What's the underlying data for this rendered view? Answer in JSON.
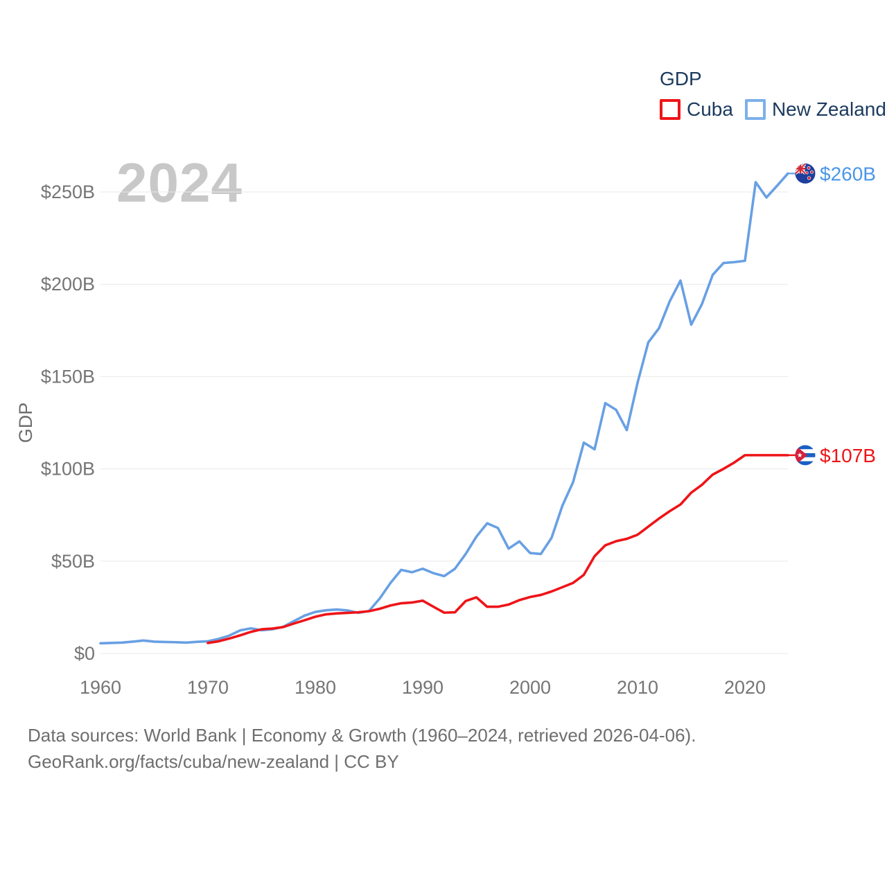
{
  "legend": {
    "title": "GDP",
    "items": [
      {
        "key": "cuba",
        "label": "Cuba",
        "color": "#ee1418"
      },
      {
        "key": "nz",
        "label": "New Zealand",
        "color": "#7db0ea"
      }
    ]
  },
  "watermark": "2024",
  "chart_data": {
    "type": "line",
    "title": "GDP",
    "ylabel": "GDP",
    "xlabel": "",
    "units": "USD billions",
    "x_range": [
      1960,
      2024
    ],
    "y_range": [
      0,
      250
    ],
    "grid": "horizontal",
    "legend_position": "top-right",
    "yticks": [
      {
        "value": 0,
        "label": "$0"
      },
      {
        "value": 50,
        "label": "$50B"
      },
      {
        "value": 100,
        "label": "$100B"
      },
      {
        "value": 150,
        "label": "$150B"
      },
      {
        "value": 200,
        "label": "$200B"
      },
      {
        "value": 250,
        "label": "$250B"
      }
    ],
    "xticks": [
      1960,
      1970,
      1980,
      1990,
      2000,
      2010,
      2020
    ],
    "series": [
      {
        "key": "cuba",
        "name": "Cuba",
        "color": "#ee1418",
        "label_color": "#ee1418",
        "end_label": "$107B",
        "flag": "cuba",
        "start_year": 1970,
        "values": [
          5.7,
          6.6,
          8.1,
          9.8,
          11.7,
          13.1,
          13.5,
          14.3,
          16.2,
          18.0,
          19.9,
          21.2,
          21.7,
          22.0,
          22.3,
          22.9,
          24.2,
          26.0,
          27.2,
          27.6,
          28.6,
          25.3,
          22.1,
          22.3,
          28.4,
          30.4,
          25.3,
          25.3,
          26.5,
          28.9,
          30.6,
          31.7,
          33.6,
          35.9,
          38.2,
          42.6,
          52.7,
          58.6,
          60.8,
          62.1,
          64.3,
          68.7,
          73.1,
          77.1,
          80.7,
          87.1,
          91.4,
          96.9,
          100.0,
          103.4,
          107.4,
          107.4,
          107.4,
          107.4,
          107.4
        ]
      },
      {
        "key": "nz",
        "name": "New Zealand",
        "color": "#68a0e3",
        "label_color": "#4b96e8",
        "end_label": "$260B",
        "flag": "new-zealand",
        "start_year": 1960,
        "values": [
          5.5,
          5.7,
          5.9,
          6.4,
          7.0,
          6.4,
          6.2,
          6.1,
          5.9,
          6.3,
          6.6,
          7.9,
          9.7,
          12.5,
          13.6,
          12.6,
          13.1,
          14.4,
          17.5,
          20.5,
          22.5,
          23.4,
          23.8,
          23.3,
          22.0,
          23.0,
          29.8,
          38.2,
          45.3,
          44.0,
          45.9,
          43.5,
          41.9,
          45.9,
          53.9,
          63.3,
          70.5,
          68.0,
          56.8,
          60.7,
          54.4,
          53.9,
          62.7,
          80.0,
          92.8,
          114.2,
          110.6,
          135.6,
          132.0,
          121.0,
          146.6,
          168.5,
          176.2,
          190.8,
          202.0,
          178.1,
          189.3,
          205.1,
          211.5,
          212.0,
          212.7,
          255.3,
          247.0,
          253.4,
          260.0
        ]
      }
    ]
  },
  "footer": {
    "line1": "Data sources: World Bank | Economy & Growth (1960–2024, retrieved 2026-04-06).",
    "line2": "GeoRank.org/facts/cuba/new-zealand | CC BY"
  }
}
